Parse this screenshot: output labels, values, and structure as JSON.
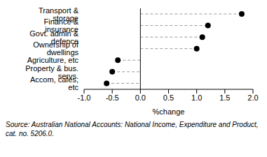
{
  "chart_data": {
    "type": "dot",
    "orientation": "horizontal",
    "categories": [
      "Transport & storage",
      "Finance & insurance",
      "Govt. admin & defence",
      "Ownership of dwellings",
      "Agriculture, etc",
      "Property & bus. servs.",
      "Accom, cafes, etc"
    ],
    "values": [
      1.8,
      1.2,
      1.1,
      1.0,
      -0.4,
      -0.5,
      -0.6
    ],
    "color": "#000000",
    "marker": "circle",
    "line_style": "dashed",
    "xlabel": "%change",
    "xlim": [
      -1,
      2
    ],
    "xticks": [
      {
        "value": -1,
        "label": "-1.0"
      },
      -0.5,
      {
        "value": 0,
        "label": "0.0"
      },
      0.5,
      {
        "value": 1,
        "label": "1.0"
      },
      1.5,
      {
        "value": 2,
        "label": "2.0"
      }
    ],
    "source": "Source: Australian National Accounts: National Income, Expenditure and Product, cat. no. 5206.0."
  }
}
